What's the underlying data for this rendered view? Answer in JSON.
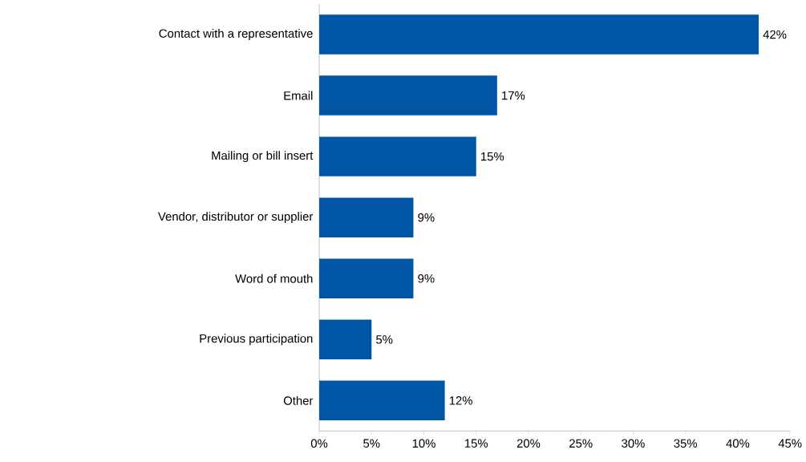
{
  "chart_data": {
    "type": "bar",
    "orientation": "horizontal",
    "categories": [
      "Contact with a representative",
      "Email",
      "Mailing or bill insert",
      "Vendor, distributor or supplier",
      "Word of mouth",
      "Previous participation",
      "Other"
    ],
    "values": [
      42,
      17,
      15,
      9,
      9,
      5,
      12
    ],
    "value_labels": [
      "42%",
      "17%",
      "15%",
      "9%",
      "9%",
      "5%",
      "12%"
    ],
    "color": "#0055a4",
    "xlim": [
      0,
      45
    ],
    "xticks": [
      {
        "value": 0,
        "label": "0%"
      },
      {
        "value": 5,
        "label": "5%"
      },
      {
        "value": 10,
        "label": "10%"
      },
      {
        "value": 15,
        "label": "15%"
      },
      {
        "value": 20,
        "label": "20%"
      },
      {
        "value": 25,
        "label": "25%"
      },
      {
        "value": 30,
        "label": "30%"
      },
      {
        "value": 35,
        "label": "35%"
      },
      {
        "value": 40,
        "label": "40%"
      },
      {
        "value": 45,
        "label": "45%"
      }
    ]
  }
}
